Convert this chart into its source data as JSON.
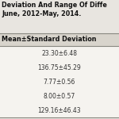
{
  "title_line1": "Deviation And Range Of Diffe",
  "title_line2": "June, 2012-May, 2014.",
  "col_header": "Mean±Standard Deviation",
  "rows": [
    "23.30±6.48",
    "136.75±45.29",
    "7.77±0.56",
    "8.00±0.57",
    "129.16±46.43"
  ],
  "bg_color": "#e8e5e0",
  "table_bg": "#f5f3ef",
  "header_bg": "#d8d4cc",
  "title_fontsize": 5.8,
  "header_fontsize": 5.8,
  "cell_fontsize": 5.5,
  "title_color": "#111111",
  "cell_color": "#333333"
}
